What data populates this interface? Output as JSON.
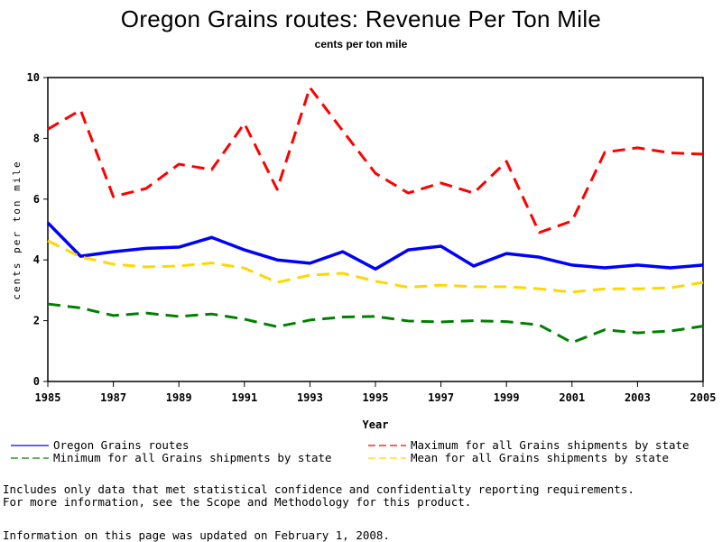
{
  "header": {
    "title": "Oregon Grains routes: Revenue Per Ton Mile",
    "subtitle": "cents per ton mile"
  },
  "chart_data": {
    "type": "line",
    "title": "Oregon Grains routes: Revenue Per Ton Mile",
    "subtitle": "cents per ton mile",
    "xlabel": "Year",
    "ylabel": "cents per ton mile",
    "xlim": [
      1985,
      2005
    ],
    "ylim": [
      0,
      10
    ],
    "x_ticks": [
      "1985",
      "1987",
      "1989",
      "1991",
      "1993",
      "1995",
      "1997",
      "1999",
      "2001",
      "2003",
      "2005"
    ],
    "y_ticks": [
      "0",
      "2",
      "4",
      "6",
      "8",
      "10"
    ],
    "grid": false,
    "legend_position": "bottom",
    "x": [
      1985,
      1986,
      1987,
      1988,
      1989,
      1990,
      1991,
      1992,
      1993,
      1994,
      1995,
      1996,
      1997,
      1998,
      1999,
      2000,
      2001,
      2002,
      2003,
      2004,
      2005
    ],
    "series": [
      {
        "name": "Oregon Grains routes",
        "color": "#0000ff",
        "style": "solid",
        "values": [
          5.22,
          4.12,
          4.27,
          4.38,
          4.42,
          4.74,
          4.33,
          4.0,
          3.89,
          4.27,
          3.7,
          4.33,
          4.45,
          3.8,
          4.21,
          4.09,
          3.83,
          3.74,
          3.83,
          3.74,
          3.83
        ]
      },
      {
        "name": "Maximum for all Grains shipments by state",
        "color": "#ff0000",
        "style": "dashed",
        "values": [
          8.3,
          8.93,
          6.08,
          6.35,
          7.15,
          6.97,
          8.49,
          6.32,
          9.67,
          8.25,
          6.85,
          6.2,
          6.53,
          6.2,
          7.24,
          4.9,
          5.28,
          7.54,
          7.69,
          7.52,
          7.48
        ]
      },
      {
        "name": "Minimum for all Grains shipments by state",
        "color": "#008000",
        "style": "dashed",
        "values": [
          2.55,
          2.42,
          2.17,
          2.25,
          2.14,
          2.22,
          2.05,
          1.8,
          2.02,
          2.12,
          2.14,
          1.99,
          1.96,
          2.0,
          1.97,
          1.86,
          1.28,
          1.7,
          1.6,
          1.66,
          1.82
        ]
      },
      {
        "name": "Mean for all Grains shipments by state",
        "color": "#ffd700",
        "style": "dashed",
        "values": [
          4.63,
          4.1,
          3.86,
          3.77,
          3.8,
          3.9,
          3.73,
          3.26,
          3.5,
          3.56,
          3.3,
          3.1,
          3.17,
          3.12,
          3.12,
          3.05,
          2.94,
          3.05,
          3.05,
          3.08,
          3.26
        ]
      }
    ]
  },
  "legend": {
    "items": [
      {
        "label": "Oregon Grains routes",
        "color": "#0000ff",
        "style": "solid"
      },
      {
        "label": "Minimum for all Grains shipments by state",
        "color": "#008000",
        "style": "dashed"
      },
      {
        "label": "Maximum for all Grains shipments by state",
        "color": "#ff0000",
        "style": "dashed"
      },
      {
        "label": "Mean for all Grains shipments by state",
        "color": "#ffd700",
        "style": "dashed"
      }
    ]
  },
  "footer": {
    "note_line1": "Includes only data that met statistical confidence and confidentialty reporting requirements.",
    "note_line2": "For more information, see the Scope and Methodology for this product.",
    "updated": "Information on this page was updated on February 1, 2008."
  }
}
